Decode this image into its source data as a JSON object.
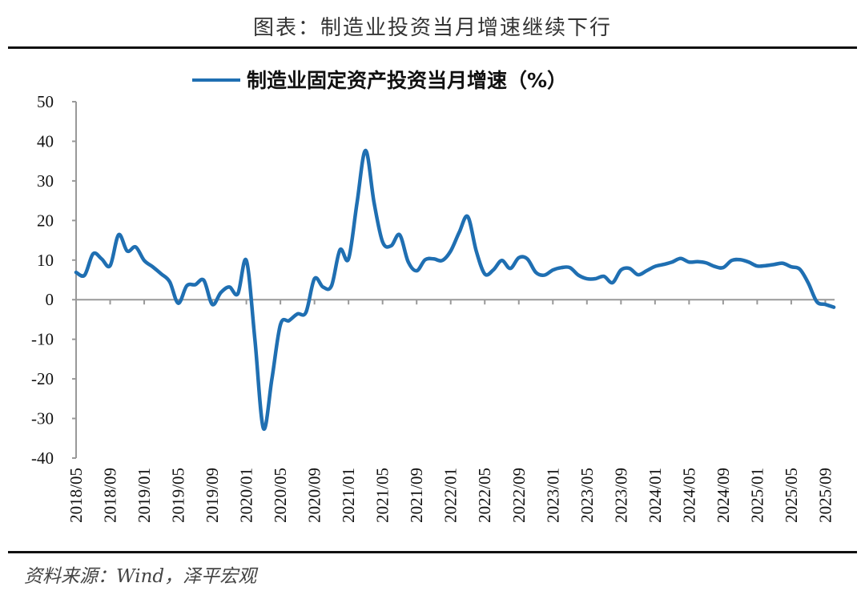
{
  "header": {
    "title": "图表：制造业投资当月增速继续下行"
  },
  "footer": {
    "source": "资料来源：Wind，泽平宏观"
  },
  "chart_data": {
    "type": "line",
    "title": "",
    "xlabel": "",
    "ylabel": "",
    "ylim": [
      -40,
      50
    ],
    "yticks": [
      "50",
      "40",
      "30",
      "20",
      "10",
      "0",
      "-10",
      "-20",
      "-30",
      "-40"
    ],
    "xticks": [
      "2018/05",
      "2018/09",
      "2019/01",
      "2019/05",
      "2019/09",
      "2020/01",
      "2020/05",
      "2020/09",
      "2021/01",
      "2021/05",
      "2021/09",
      "2022/01",
      "2022/05",
      "2022/09",
      "2023/01",
      "2023/05",
      "2023/09",
      "2024/01",
      "2024/05",
      "2024/09",
      "2025/01",
      "2025/05",
      "2025/09"
    ],
    "grid": false,
    "legend": "top-center",
    "color": "#1f6fb2",
    "start": "2018/05",
    "series": [
      {
        "name": "制造业固定资产投资当月增速（%）",
        "values": [
          6.9,
          6.2,
          11.6,
          10.3,
          8.6,
          16.4,
          12.3,
          13.3,
          9.9,
          8.3,
          6.5,
          4.5,
          -0.9,
          3.5,
          3.8,
          4.9,
          -1.2,
          1.8,
          3.2,
          1.5,
          9.9,
          -10,
          -32.5,
          -20,
          -6.3,
          -5.3,
          -3.6,
          -3.2,
          5.3,
          3.2,
          3.5,
          12.6,
          10.3,
          24.5,
          37.7,
          24.5,
          14.6,
          13.6,
          16.4,
          9.6,
          7.3,
          10.1,
          10.3,
          9.9,
          12.3,
          17,
          21,
          12.3,
          6.5,
          7.5,
          9.9,
          7.9,
          10.6,
          10.3,
          6.9,
          6.2,
          7.5,
          8.1,
          8.1,
          6.2,
          5.3,
          5.3,
          5.9,
          4.3,
          7.5,
          7.9,
          6.3,
          7.3,
          8.4,
          8.9,
          9.5,
          10.4,
          9.5,
          9.6,
          9.3,
          8.4,
          8.1,
          9.9,
          10.1,
          9.5,
          8.5,
          8.6,
          8.9,
          9.2,
          8.3,
          7.7,
          4.2,
          -0.5,
          -1.2,
          -1.9
        ]
      }
    ]
  }
}
